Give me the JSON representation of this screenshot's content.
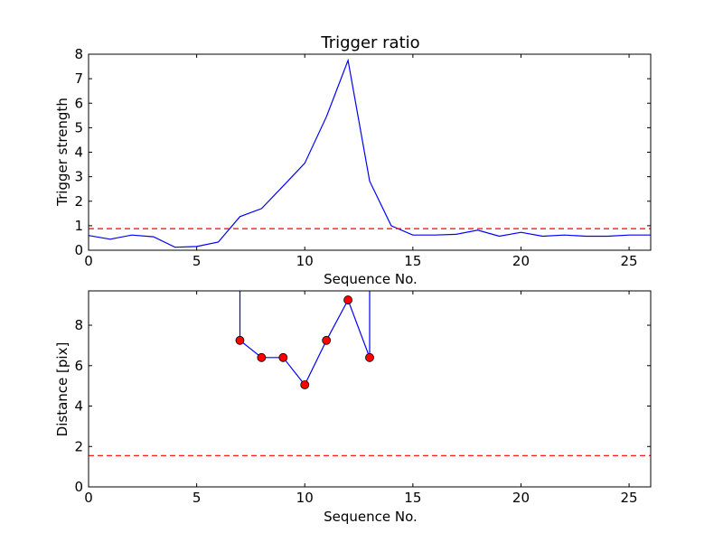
{
  "chart_data": [
    {
      "type": "line",
      "title": "Trigger ratio",
      "xlabel": "Sequence No.",
      "ylabel": "Trigger strength",
      "xlim": [
        0,
        26
      ],
      "ylim": [
        0,
        8
      ],
      "xticks": [
        0,
        5,
        10,
        15,
        20,
        25
      ],
      "yticks": [
        0,
        1,
        2,
        3,
        4,
        5,
        6,
        7,
        8
      ],
      "grid": false,
      "series": [
        {
          "color": "#0000ff",
          "style": "solid",
          "x": [
            0,
            1,
            2,
            3,
            4,
            5,
            6,
            7,
            8,
            9,
            10,
            11,
            12,
            13,
            14,
            15,
            16,
            17,
            18,
            19,
            20,
            21,
            22,
            23,
            24,
            25,
            26
          ],
          "y": [
            0.6,
            0.45,
            0.62,
            0.55,
            0.12,
            0.15,
            0.33,
            1.37,
            1.7,
            2.62,
            3.55,
            5.45,
            7.75,
            2.82,
            1.0,
            0.62,
            0.62,
            0.65,
            0.82,
            0.57,
            0.73,
            0.57,
            0.62,
            0.57,
            0.57,
            0.62,
            0.62
          ]
        },
        {
          "color": "#ff0000",
          "style": "dashed",
          "x": [
            0,
            26
          ],
          "y": [
            0.88,
            0.88
          ]
        }
      ]
    },
    {
      "type": "line",
      "title": "",
      "xlabel": "Sequence No.",
      "ylabel": "Distance [pix]",
      "xlim": [
        0,
        26
      ],
      "ylim": [
        0,
        9.7
      ],
      "xticks": [
        0,
        5,
        10,
        15,
        20,
        25
      ],
      "yticks": [
        0,
        2,
        4,
        6,
        8
      ],
      "grid": false,
      "series": [
        {
          "color": "#0000ff",
          "style": "solid",
          "marker_color": "#ff0000",
          "x": [
            7,
            7,
            8,
            9,
            10,
            11,
            12,
            13,
            13
          ],
          "y": [
            10.5,
            7.25,
            6.4,
            6.4,
            5.05,
            7.25,
            9.25,
            6.4,
            10.5
          ],
          "markers": [
            false,
            true,
            true,
            true,
            true,
            true,
            true,
            true,
            false
          ]
        },
        {
          "color": "#ff0000",
          "style": "dashed",
          "x": [
            0,
            26
          ],
          "y": [
            1.55,
            1.55
          ]
        }
      ]
    }
  ]
}
